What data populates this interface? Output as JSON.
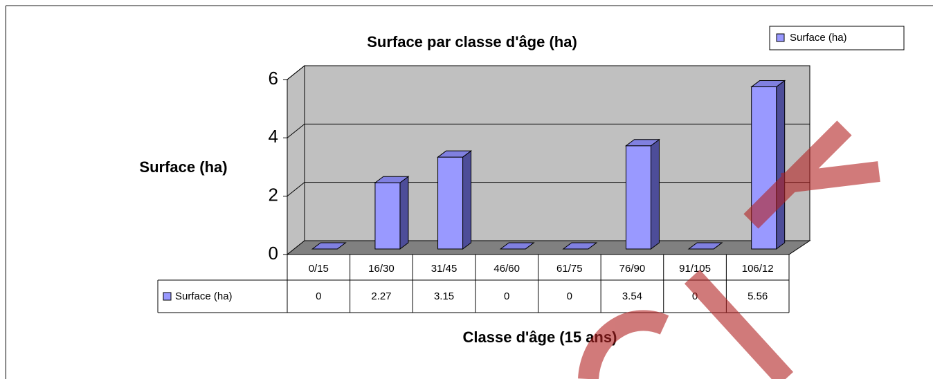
{
  "chart_data": {
    "type": "bar3d",
    "title": "Surface par classe d'âge (ha)",
    "y_label": "Surface (ha)",
    "x_label": "Classe d'âge (15 ans)",
    "categories": [
      "0/15",
      "16/30",
      "31/45",
      "46/60",
      "61/75",
      "76/90",
      "91/105",
      "106/12"
    ],
    "series": [
      {
        "name": "Surface (ha)",
        "color": "#9999ff",
        "values": [
          0,
          2.27,
          3.15,
          0,
          0,
          3.54,
          0,
          5.56
        ]
      }
    ],
    "ylim": [
      0,
      6
    ],
    "yticks": [
      0,
      2,
      4,
      6
    ],
    "grid": true,
    "legend": "top-right",
    "data_table": true
  }
}
